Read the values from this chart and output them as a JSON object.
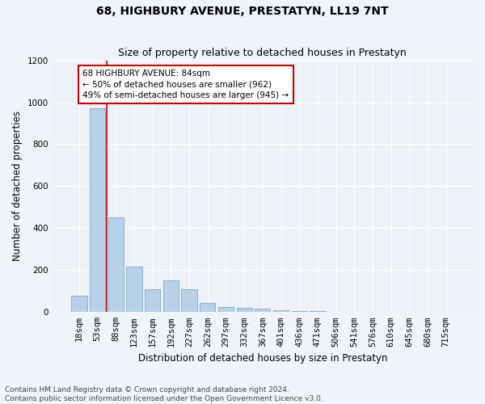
{
  "title": "68, HIGHBURY AVENUE, PRESTATYN, LL19 7NT",
  "subtitle": "Size of property relative to detached houses in Prestatyn",
  "xlabel": "Distribution of detached houses by size in Prestatyn",
  "ylabel": "Number of detached properties",
  "bar_labels": [
    "18sqm",
    "53sqm",
    "88sqm",
    "123sqm",
    "157sqm",
    "192sqm",
    "227sqm",
    "262sqm",
    "297sqm",
    "332sqm",
    "367sqm",
    "401sqm",
    "436sqm",
    "471sqm",
    "506sqm",
    "541sqm",
    "576sqm",
    "610sqm",
    "645sqm",
    "680sqm",
    "715sqm"
  ],
  "bar_values": [
    80,
    970,
    450,
    215,
    110,
    150,
    110,
    45,
    25,
    22,
    15,
    10,
    5,
    5,
    0,
    0,
    0,
    0,
    0,
    0,
    0
  ],
  "bar_color": "#b8d0e8",
  "bar_edge_color": "#7aa8d0",
  "vline_color": "#cc0000",
  "annotation_text": "68 HIGHBURY AVENUE: 84sqm\n← 50% of detached houses are smaller (962)\n49% of semi-detached houses are larger (945) →",
  "annotation_box_color": "#ffffff",
  "annotation_box_edge": "#cc0000",
  "ylim": [
    0,
    1200
  ],
  "yticks": [
    0,
    200,
    400,
    600,
    800,
    1000,
    1200
  ],
  "bg_color": "#f0f4fa",
  "plot_bg_color": "#edf1f8",
  "grid_color": "#ffffff",
  "footer": "Contains HM Land Registry data © Crown copyright and database right 2024.\nContains public sector information licensed under the Open Government Licence v3.0.",
  "title_fontsize": 10,
  "subtitle_fontsize": 9,
  "tick_fontsize": 7.5,
  "ylabel_fontsize": 8.5,
  "xlabel_fontsize": 8.5,
  "footer_fontsize": 6.5
}
